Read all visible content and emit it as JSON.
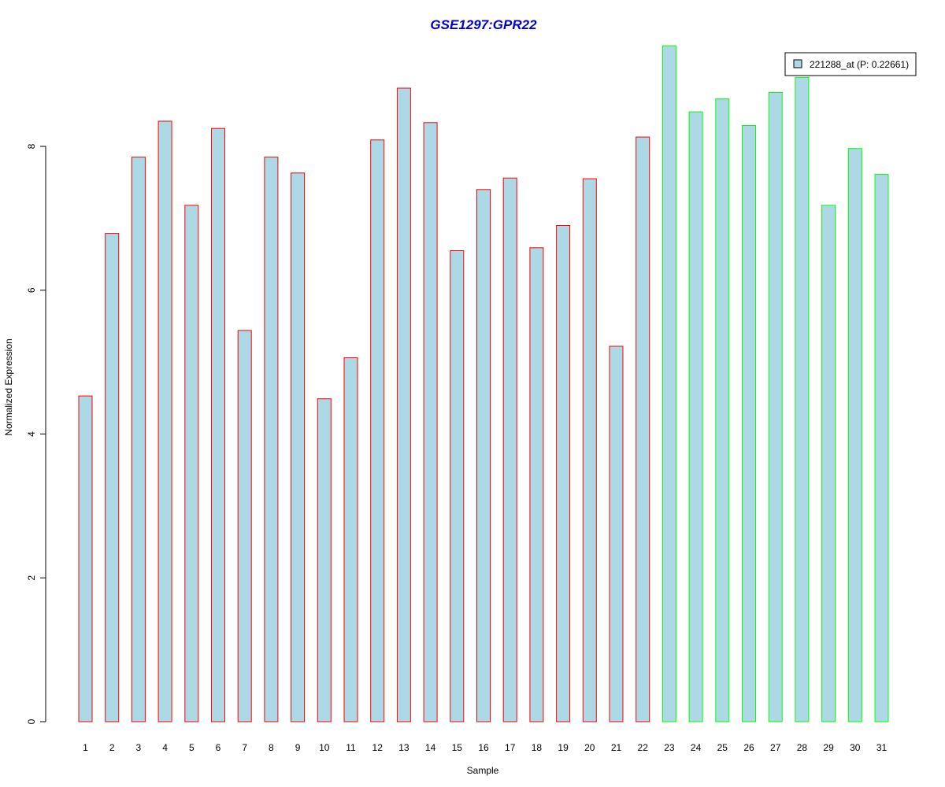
{
  "chart_data": {
    "type": "bar",
    "title": "GSE1297:GPR22",
    "xlabel": "Sample",
    "ylabel": "Normalized Expression",
    "categories": [
      "1",
      "2",
      "3",
      "4",
      "5",
      "6",
      "7",
      "8",
      "9",
      "10",
      "11",
      "12",
      "13",
      "14",
      "15",
      "16",
      "17",
      "18",
      "19",
      "20",
      "21",
      "22",
      "23",
      "24",
      "25",
      "26",
      "27",
      "28",
      "29",
      "30",
      "31"
    ],
    "values": [
      4.53,
      6.79,
      7.85,
      8.35,
      7.18,
      8.25,
      5.44,
      7.85,
      7.63,
      4.49,
      5.06,
      8.09,
      8.81,
      8.33,
      6.55,
      7.4,
      7.56,
      6.59,
      6.9,
      7.55,
      5.22,
      8.13,
      9.4,
      8.48,
      8.66,
      8.29,
      8.75,
      8.96,
      7.18,
      7.97,
      7.61
    ],
    "groups": [
      "a",
      "a",
      "a",
      "a",
      "a",
      "a",
      "a",
      "a",
      "a",
      "a",
      "a",
      "a",
      "a",
      "a",
      "a",
      "a",
      "a",
      "a",
      "a",
      "a",
      "a",
      "a",
      "b",
      "b",
      "b",
      "b",
      "b",
      "b",
      "b",
      "b",
      "b"
    ],
    "group_border_colors": {
      "a": "#ff0000",
      "b": "#00ff00"
    },
    "bar_fill": "#add8e6",
    "title_color": "#0000cc",
    "ylim": [
      0,
      9.4
    ],
    "yticks": [
      0,
      2,
      4,
      6,
      8
    ],
    "grid": false,
    "legend": {
      "placement": "top-right",
      "entries": [
        {
          "label": "221288_at (P: 0.22661)",
          "color": "#add8e6"
        }
      ]
    }
  }
}
